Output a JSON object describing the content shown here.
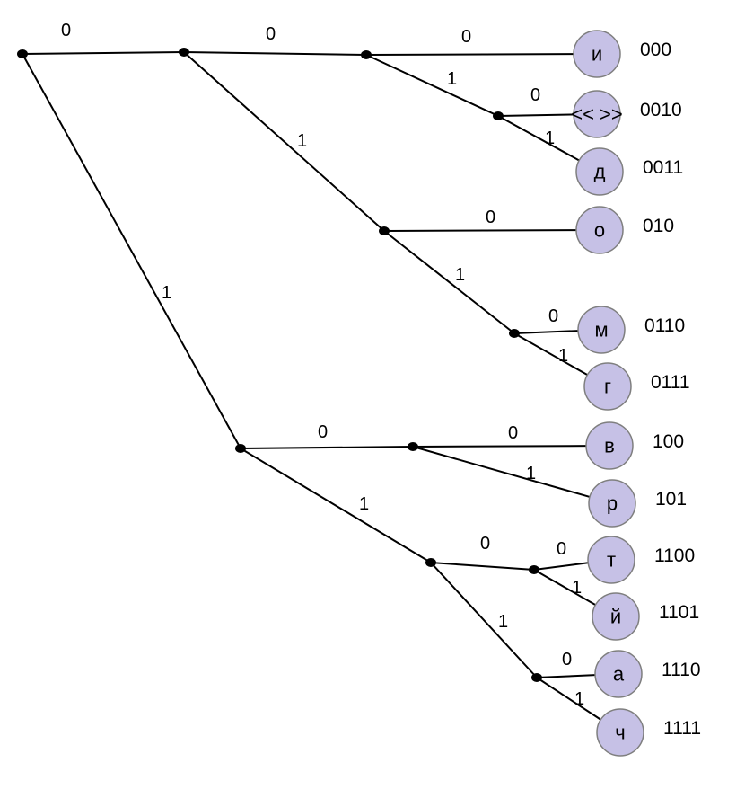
{
  "colors": {
    "leaf_fill": "#c6c1e6",
    "edge": "#000000"
  },
  "nodes": [
    {
      "id": "root"
    },
    {
      "id": "n0"
    },
    {
      "id": "n00"
    },
    {
      "id": "n001"
    },
    {
      "id": "n01"
    },
    {
      "id": "n011"
    },
    {
      "id": "n1"
    },
    {
      "id": "n10"
    },
    {
      "id": "n11"
    },
    {
      "id": "n110"
    },
    {
      "id": "n111"
    }
  ],
  "edges": [
    {
      "from": "root",
      "to": "n0",
      "label": "0"
    },
    {
      "from": "root",
      "to": "n1",
      "label": "1"
    },
    {
      "from": "n0",
      "to": "n00",
      "label": "0"
    },
    {
      "from": "n0",
      "to": "n01",
      "label": "1"
    },
    {
      "from": "n00",
      "to": "leaf_i",
      "label": "0"
    },
    {
      "from": "n00",
      "to": "n001",
      "label": "1"
    },
    {
      "from": "n001",
      "to": "leaf_space",
      "label": "0"
    },
    {
      "from": "n001",
      "to": "leaf_d",
      "label": "1"
    },
    {
      "from": "n01",
      "to": "leaf_o",
      "label": "0"
    },
    {
      "from": "n01",
      "to": "n011",
      "label": "1"
    },
    {
      "from": "n011",
      "to": "leaf_m",
      "label": "0"
    },
    {
      "from": "n011",
      "to": "leaf_g",
      "label": "1"
    },
    {
      "from": "n1",
      "to": "n10",
      "label": "0"
    },
    {
      "from": "n1",
      "to": "n11",
      "label": "1"
    },
    {
      "from": "n10",
      "to": "leaf_v",
      "label": "0"
    },
    {
      "from": "n10",
      "to": "leaf_r",
      "label": "1"
    },
    {
      "from": "n11",
      "to": "n110",
      "label": "0"
    },
    {
      "from": "n11",
      "to": "n111",
      "label": "1"
    },
    {
      "from": "n110",
      "to": "leaf_t",
      "label": "0"
    },
    {
      "from": "n110",
      "to": "leaf_y",
      "label": "1"
    },
    {
      "from": "n111",
      "to": "leaf_a",
      "label": "0"
    },
    {
      "from": "n111",
      "to": "leaf_ch",
      "label": "1"
    }
  ],
  "leaves": [
    {
      "id": "leaf_i",
      "symbol": "и",
      "code": "000"
    },
    {
      "id": "leaf_space",
      "symbol": "<< >>",
      "code": "0010"
    },
    {
      "id": "leaf_d",
      "symbol": "д",
      "code": "0011"
    },
    {
      "id": "leaf_o",
      "symbol": "о",
      "code": "010"
    },
    {
      "id": "leaf_m",
      "symbol": "м",
      "code": "0110"
    },
    {
      "id": "leaf_g",
      "symbol": "г",
      "code": "0111"
    },
    {
      "id": "leaf_v",
      "symbol": "в",
      "code": "100"
    },
    {
      "id": "leaf_r",
      "symbol": "р",
      "code": "101"
    },
    {
      "id": "leaf_t",
      "symbol": "т",
      "code": "1100"
    },
    {
      "id": "leaf_y",
      "symbol": "й",
      "code": "1101"
    },
    {
      "id": "leaf_a",
      "symbol": "а",
      "code": "1110"
    },
    {
      "id": "leaf_ch",
      "symbol": "ч",
      "code": "1111"
    }
  ]
}
